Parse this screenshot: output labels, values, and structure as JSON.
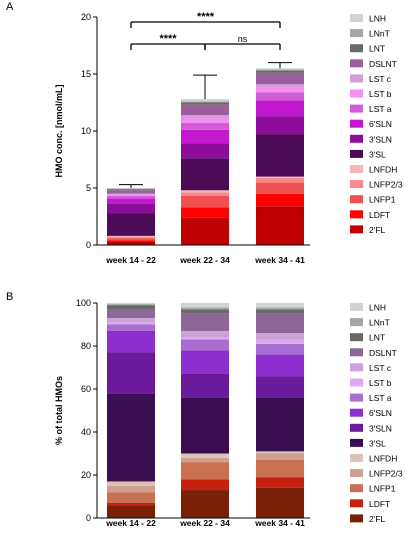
{
  "chart_data": [
    {
      "panel": "A",
      "type": "bar",
      "stacked": true,
      "ylabel": "HMO conc. [nmol/mL]",
      "ylim": [
        0,
        20
      ],
      "yticks": [
        0,
        5,
        10,
        15,
        20
      ],
      "categories": [
        "week 14 - 22",
        "week 22 - 34",
        "week 34 - 41"
      ],
      "error_bar_top": [
        5.3,
        14.9,
        16.0
      ],
      "significance": [
        {
          "from": 0,
          "to": 2,
          "label": "****"
        },
        {
          "from": 0,
          "to": 1,
          "label": "****"
        },
        {
          "from": 1,
          "to": 2,
          "label": "ns"
        }
      ],
      "legend_position": "right",
      "series": [
        {
          "name": "2'FL",
          "color": "#c00000",
          "values": [
            0.3,
            2.4,
            3.4
          ]
        },
        {
          "name": "LDFT",
          "color": "#ff0000",
          "values": [
            0.1,
            0.9,
            1.1
          ]
        },
        {
          "name": "LNFP1",
          "color": "#f05050",
          "values": [
            0.2,
            1.0,
            1.0
          ]
        },
        {
          "name": "LNFP2/3",
          "color": "#f58a8a",
          "values": [
            0.1,
            0.3,
            0.4
          ]
        },
        {
          "name": "LNFDH",
          "color": "#f7b8b8",
          "values": [
            0.1,
            0.2,
            0.1
          ]
        },
        {
          "name": "3'SL",
          "color": "#4b0a55",
          "values": [
            2.0,
            2.8,
            3.7
          ]
        },
        {
          "name": "3'SLN",
          "color": "#8d0c99",
          "values": [
            0.8,
            1.3,
            1.6
          ]
        },
        {
          "name": "6'SLN",
          "color": "#c219d0",
          "values": [
            0.5,
            1.2,
            1.4
          ]
        },
        {
          "name": "LST a",
          "color": "#d05cd8",
          "values": [
            0.2,
            0.6,
            0.7
          ]
        },
        {
          "name": "LST b",
          "color": "#f78cf3",
          "values": [
            0.1,
            0.4,
            0.4
          ]
        },
        {
          "name": "LST c",
          "color": "#d59ad8",
          "values": [
            0.1,
            0.3,
            0.3
          ]
        },
        {
          "name": "DSLNT",
          "color": "#9b5f9e",
          "values": [
            0.3,
            0.9,
            1.0
          ]
        },
        {
          "name": "LNT",
          "color": "#6a6a6a",
          "values": [
            0.1,
            0.2,
            0.2
          ]
        },
        {
          "name": "LNnT",
          "color": "#a6a6a6",
          "values": [
            0.05,
            0.1,
            0.1
          ]
        },
        {
          "name": "LNH",
          "color": "#d3d3d3",
          "values": [
            0.05,
            0.2,
            0.1
          ]
        }
      ]
    },
    {
      "panel": "B",
      "type": "bar",
      "stacked": true,
      "ylabel": "% of total HMOs",
      "ylim": [
        0,
        100
      ],
      "yticks": [
        0,
        20,
        40,
        60,
        80,
        100
      ],
      "categories": [
        "week 14 - 22",
        "week 22 - 34",
        "week 34 - 41"
      ],
      "legend_position": "right",
      "series": [
        {
          "name": "2'FL",
          "color": "#7a2007",
          "values": [
            6,
            13,
            14
          ]
        },
        {
          "name": "LDFT",
          "color": "#c8200f",
          "values": [
            1,
            5,
            5
          ]
        },
        {
          "name": "LNFP1",
          "color": "#c87050",
          "values": [
            5,
            8,
            8
          ]
        },
        {
          "name": "LNFP2/3",
          "color": "#cda090",
          "values": [
            3,
            2,
            3
          ]
        },
        {
          "name": "LNFDH",
          "color": "#ddc2b6",
          "values": [
            2,
            2,
            1
          ]
        },
        {
          "name": "3'SL",
          "color": "#3a0f52",
          "values": [
            41,
            26,
            25
          ]
        },
        {
          "name": "3'SLN",
          "color": "#6a1a9a",
          "values": [
            19,
            11,
            10
          ]
        },
        {
          "name": "6'SLN",
          "color": "#8d2ecf",
          "values": [
            10,
            11,
            10
          ]
        },
        {
          "name": "LST a",
          "color": "#a86dd1",
          "values": [
            3,
            5,
            5
          ]
        },
        {
          "name": "LST b",
          "color": "#dca8ee",
          "values": [
            1,
            1,
            2
          ]
        },
        {
          "name": "LST c",
          "color": "#c9a3d9",
          "values": [
            2,
            3,
            3
          ]
        },
        {
          "name": "DSLNT",
          "color": "#8c6899",
          "values": [
            4,
            8,
            9
          ]
        },
        {
          "name": "LNT",
          "color": "#6a6a6a",
          "values": [
            2,
            2,
            2
          ]
        },
        {
          "name": "LNnT",
          "color": "#a6a6a6",
          "values": [
            0.5,
            1,
            1
          ]
        },
        {
          "name": "LNH",
          "color": "#d3d3d3",
          "values": [
            0.5,
            2,
            2
          ]
        }
      ]
    }
  ]
}
